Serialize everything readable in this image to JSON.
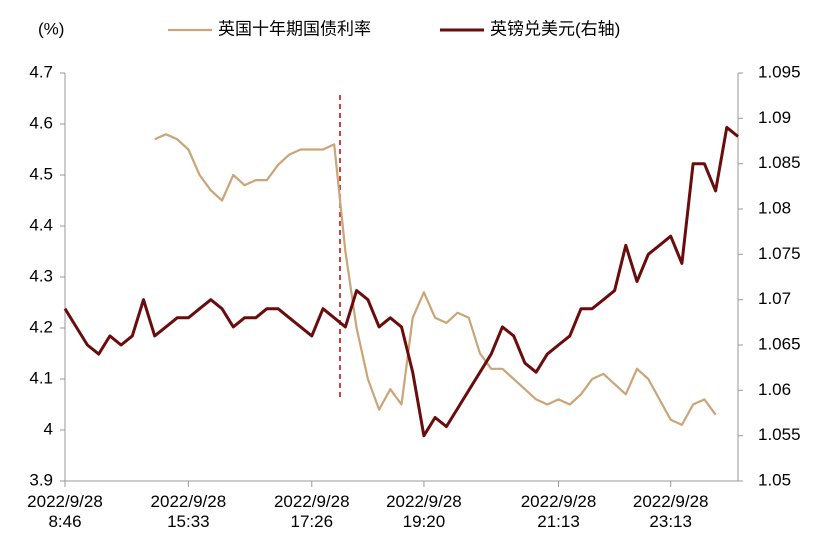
{
  "chart_data": {
    "type": "line",
    "y_label": "(%)",
    "categories": [
      "2022/9/28\n8:46",
      null,
      null,
      null,
      null,
      null,
      null,
      null,
      null,
      null,
      null,
      "2022/9/28\n15:33",
      null,
      null,
      null,
      null,
      null,
      null,
      null,
      null,
      null,
      null,
      "2022/9/28\n17:26",
      null,
      null,
      null,
      null,
      null,
      null,
      null,
      null,
      null,
      "2022/9/28\n19:20",
      null,
      null,
      null,
      null,
      null,
      null,
      null,
      null,
      null,
      null,
      null,
      "2022/9/28\n21:13",
      null,
      null,
      null,
      null,
      null,
      null,
      null,
      null,
      null,
      "2022/9/28\n23:13",
      null,
      null,
      null,
      null,
      null,
      null
    ],
    "series": [
      {
        "name": "英国十年期国债利率",
        "color": "#c9a577",
        "axis": "y",
        "values": [
          null,
          null,
          null,
          null,
          null,
          null,
          null,
          null,
          4.57,
          4.58,
          4.57,
          4.55,
          4.5,
          4.47,
          4.45,
          4.5,
          4.48,
          4.49,
          4.49,
          4.52,
          4.54,
          4.55,
          4.55,
          4.55,
          4.56,
          4.35,
          4.2,
          4.1,
          4.04,
          4.08,
          4.05,
          4.22,
          4.27,
          4.22,
          4.21,
          4.23,
          4.22,
          4.15,
          4.12,
          4.12,
          4.1,
          4.08,
          4.06,
          4.05,
          4.06,
          4.05,
          4.07,
          4.1,
          4.11,
          4.09,
          4.07,
          4.12,
          4.1,
          4.06,
          4.02,
          4.01,
          4.05,
          4.06,
          4.03,
          null,
          null
        ]
      },
      {
        "name": "英镑兑美元(右轴)",
        "color": "#6b0c0c",
        "axis": "y2",
        "values": [
          1.069,
          1.067,
          1.065,
          1.064,
          1.066,
          1.065,
          1.066,
          1.07,
          1.066,
          1.067,
          1.068,
          1.068,
          1.069,
          1.07,
          1.069,
          1.067,
          1.068,
          1.068,
          1.069,
          1.069,
          1.068,
          1.067,
          1.066,
          1.069,
          1.068,
          1.067,
          1.071,
          1.07,
          1.067,
          1.068,
          1.067,
          1.062,
          1.055,
          1.057,
          1.056,
          1.058,
          1.06,
          1.062,
          1.064,
          1.067,
          1.066,
          1.063,
          1.062,
          1.064,
          1.065,
          1.066,
          1.069,
          1.069,
          1.07,
          1.071,
          1.076,
          1.072,
          1.075,
          1.076,
          1.077,
          1.074,
          1.085,
          1.085,
          1.082,
          1.089,
          1.088
        ]
      }
    ],
    "ylim": [
      3.9,
      4.7
    ],
    "yticks": [
      3.9,
      4,
      4.1,
      4.2,
      4.3,
      4.4,
      4.5,
      4.6,
      4.7
    ],
    "y2lim": [
      1.05,
      1.095
    ],
    "y2ticks": [
      1.05,
      1.055,
      1.06,
      1.065,
      1.07,
      1.075,
      1.08,
      1.085,
      1.09,
      1.095
    ],
    "legend": "top"
  }
}
